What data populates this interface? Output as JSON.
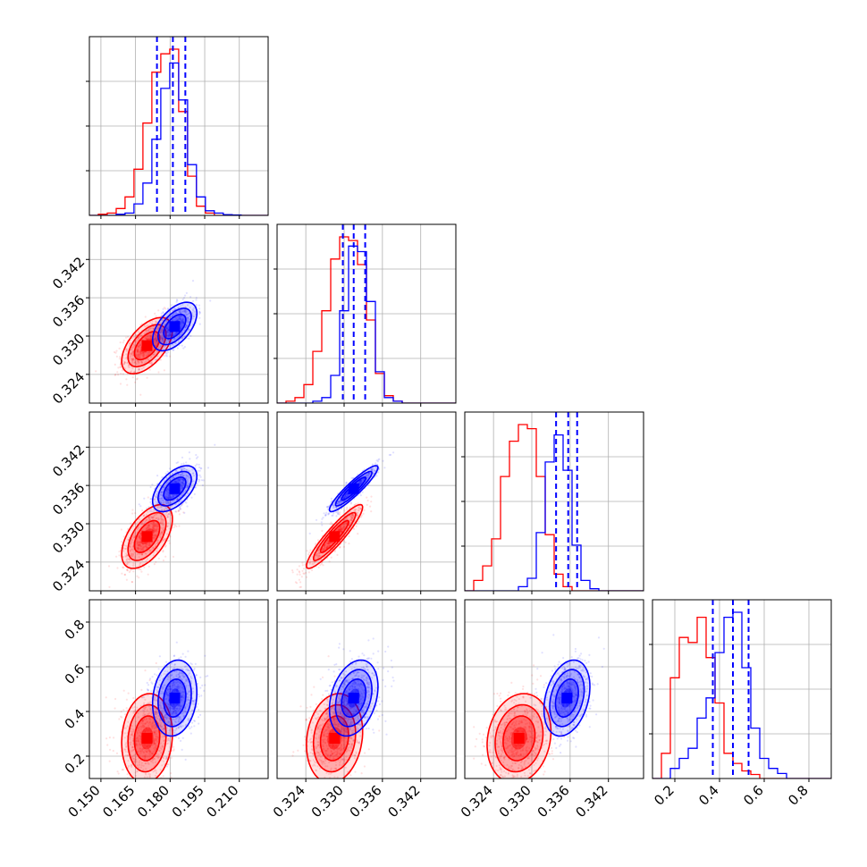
{
  "chart_data": {
    "type": "corner",
    "grid": true,
    "parameters": [
      {
        "ticks": [
          0.15,
          0.165,
          0.18,
          0.195,
          0.21
        ],
        "tick_labels": [
          "0.150",
          "0.165",
          "0.180",
          "0.195",
          "0.210"
        ],
        "range": [
          0.145,
          0.2225
        ]
      },
      {
        "ticks": [
          0.324,
          0.33,
          0.336,
          0.342
        ],
        "tick_labels": [
          "0.324",
          "0.330",
          "0.336",
          "0.342"
        ],
        "range": [
          0.3195,
          0.3475
        ]
      },
      {
        "ticks": [
          0.324,
          0.33,
          0.336,
          0.342
        ],
        "tick_labels": [
          "0.324",
          "0.330",
          "0.336",
          "0.342"
        ],
        "range": [
          0.3195,
          0.3475
        ]
      },
      {
        "ticks": [
          0.2,
          0.4,
          0.6,
          0.8
        ],
        "tick_labels": [
          "0.2",
          "0.4",
          "0.6",
          "0.8"
        ],
        "range": [
          0.1,
          0.9
        ]
      }
    ],
    "series": [
      {
        "color": "#ff0000",
        "means": [
          0.17,
          0.3285,
          0.328,
          0.28
        ],
        "sigmas": [
          0.0055,
          0.0022,
          0.0025,
          0.1
        ],
        "correlations": [
          [
            1.0,
            0.55,
            0.55,
            0.1
          ],
          [
            0.55,
            1.0,
            0.92,
            0.15
          ],
          [
            0.55,
            0.92,
            1.0,
            0.15
          ],
          [
            0.1,
            0.15,
            0.15,
            1.0
          ]
        ],
        "histograms": [
          {
            "edges_start": 0.145,
            "bin_width": 0.00387,
            "counts": [
              0,
              0.5,
              1,
              3,
              8,
              20,
              40,
              62,
              70,
              72,
              45,
              17,
              4,
              1,
              0,
              0,
              0,
              0,
              0,
              0
            ]
          },
          {
            "edges_start": 0.3195,
            "bin_width": 0.0014,
            "counts": [
              0,
              1,
              3,
              10,
              28,
              50,
              78,
              90,
              88,
              75,
              45,
              16,
              4,
              1,
              0,
              0,
              0,
              0,
              0,
              0
            ]
          },
          {
            "edges_start": 0.3195,
            "bin_width": 0.0014,
            "counts": [
              0,
              5,
              12,
              25,
              55,
              72,
              80,
              78,
              55,
              27,
              8,
              2,
              0,
              0,
              0,
              0,
              0,
              0,
              0,
              0
            ]
          },
          {
            "edges_start": 0.1,
            "bin_width": 0.04,
            "counts": [
              0,
              5,
              20,
              28,
              27,
              32,
              24,
              15,
              5,
              3,
              1.5,
              0.8,
              0,
              0,
              0,
              0,
              0,
              0,
              0,
              0
            ]
          }
        ]
      },
      {
        "color": "#0000ff",
        "means": [
          0.182,
          0.3315,
          0.3355,
          0.46
        ],
        "sigmas": [
          0.0048,
          0.0019,
          0.0018,
          0.085
        ],
        "correlations": [
          [
            1.0,
            0.55,
            0.55,
            0.15
          ],
          [
            0.55,
            1.0,
            0.92,
            0.3
          ],
          [
            0.55,
            0.92,
            1.0,
            0.3
          ],
          [
            0.15,
            0.3,
            0.3,
            1.0
          ]
        ],
        "histograms": [
          {
            "edges_start": 0.145,
            "bin_width": 0.00387,
            "counts": [
              0,
              0,
              0,
              0.5,
              1,
              5,
              14,
              33,
              55,
              66,
              50,
              22,
              8,
              2,
              1,
              0.3,
              0.2,
              0,
              0,
              0
            ]
          },
          {
            "edges_start": 0.3195,
            "bin_width": 0.0014,
            "counts": [
              0,
              0,
              0,
              0,
              1,
              3,
              15,
              50,
              85,
              82,
              55,
              17,
              3,
              1,
              0,
              0,
              0,
              0,
              0,
              0
            ]
          },
          {
            "edges_start": 0.3195,
            "bin_width": 0.0014,
            "counts": [
              0,
              0,
              0,
              0,
              0,
              0,
              2,
              6,
              28,
              62,
              75,
              58,
              22,
              5,
              1,
              0,
              0,
              0,
              0,
              0
            ]
          },
          {
            "edges_start": 0.1,
            "bin_width": 0.04,
            "counts": [
              0,
              0,
              2,
              4,
              6,
              12,
              16,
              25,
              32,
              33,
              22,
              10,
              4,
              2,
              1,
              0,
              0,
              0,
              0,
              0
            ]
          }
        ]
      }
    ],
    "quantile_lines": {
      "color": "#0000ff",
      "style": "dashed",
      "values": [
        [
          0.1743,
          0.1812,
          0.1866
        ],
        [
          0.3298,
          0.3315,
          0.3333
        ],
        [
          0.3338,
          0.3357,
          0.3371
        ],
        [
          0.37,
          0.46,
          0.53
        ]
      ]
    }
  }
}
